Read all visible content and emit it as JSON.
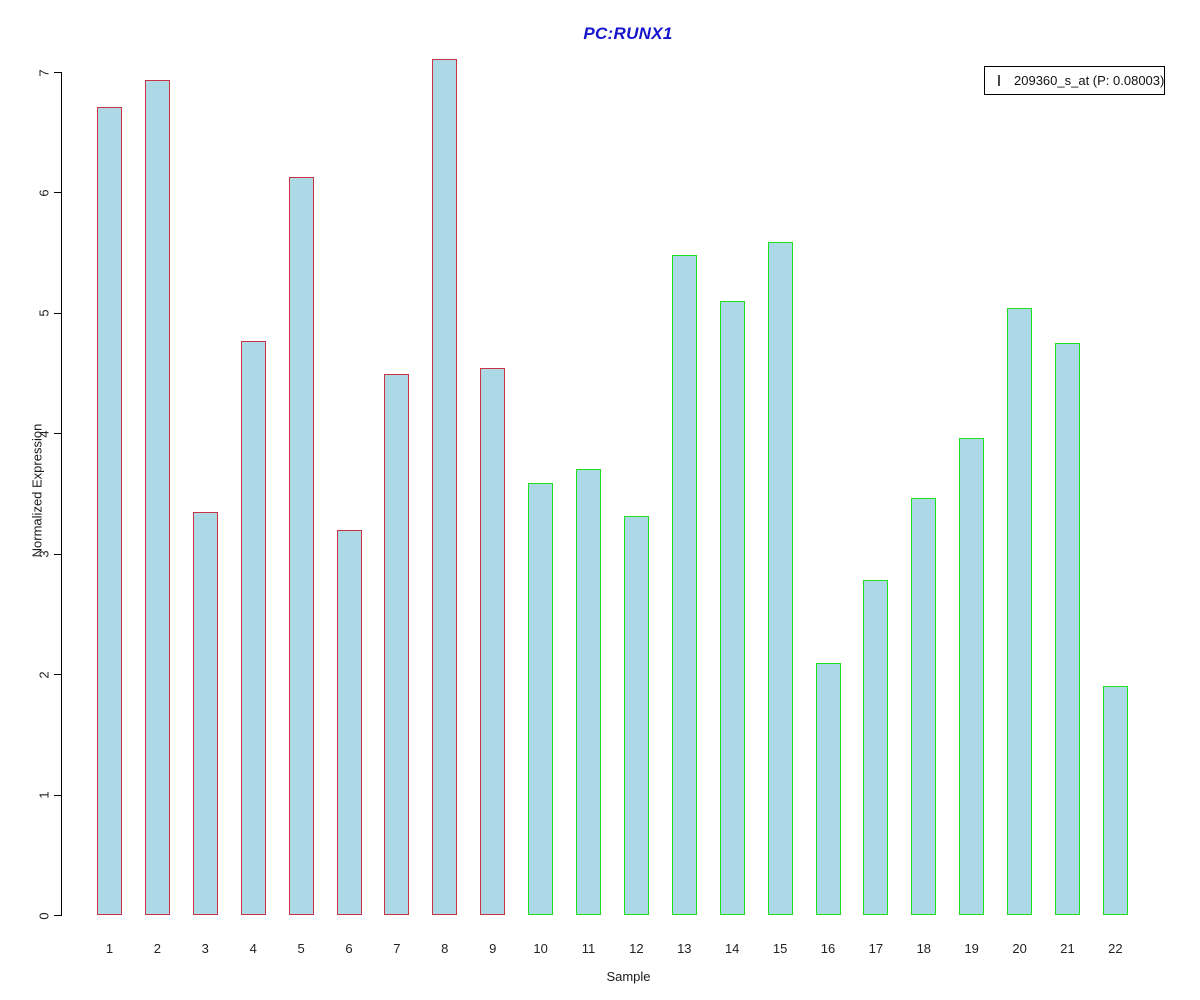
{
  "chart_data": {
    "type": "bar",
    "title": "PC:RUNX1",
    "title_color": "#1515cd",
    "xlabel": "Sample",
    "ylabel": "Normalized Expression",
    "ylim": [
      0,
      7
    ],
    "y_ticks": [
      0,
      1,
      2,
      3,
      4,
      5,
      6,
      7
    ],
    "grid": false,
    "legend_position": "top-right",
    "categories": [
      "1",
      "2",
      "3",
      "4",
      "5",
      "6",
      "7",
      "8",
      "9",
      "10",
      "11",
      "12",
      "13",
      "14",
      "15",
      "16",
      "17",
      "18",
      "19",
      "20",
      "21",
      "22"
    ],
    "series": [
      {
        "name": "209360_s_at (P: 0.08003)",
        "values": [
          6.71,
          6.93,
          3.35,
          4.77,
          6.13,
          3.2,
          4.49,
          7.11,
          4.54,
          3.59,
          3.7,
          3.31,
          5.48,
          5.1,
          5.59,
          2.09,
          2.78,
          3.46,
          3.96,
          5.04,
          4.75,
          1.9
        ]
      }
    ],
    "bar_fill": "#add8e6",
    "bar_border_groups": [
      {
        "from": 1,
        "to": 9,
        "border_color": "#cc3340"
      },
      {
        "from": 10,
        "to": 22,
        "border_color": "#1fdf1f"
      }
    ]
  },
  "legend": {
    "label": "209360_s_at (P: 0.08003)"
  }
}
